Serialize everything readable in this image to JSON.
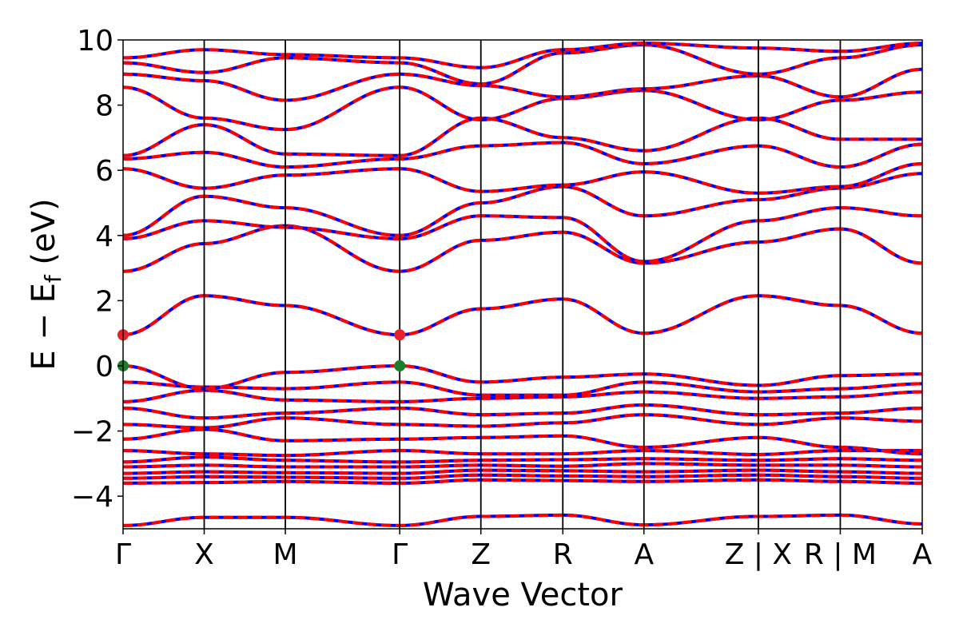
{
  "chart_data": {
    "type": "line",
    "ylabel": "E − E",
    "ylabel_sub": "f",
    "ylabel_unit": " (eV)",
    "xlabel": "Wave Vector",
    "ylim": [
      -5,
      10
    ],
    "yticks": [
      -4,
      -2,
      0,
      2,
      4,
      6,
      8,
      10
    ],
    "ytick_labels": [
      "−4",
      "−2",
      "0",
      "2",
      "4",
      "6",
      "8",
      "10"
    ],
    "kpath_ticks": [
      {
        "k": 0.0,
        "label": "Γ"
      },
      {
        "k": 1.0,
        "label": "X"
      },
      {
        "k": 2.0,
        "label": "M"
      },
      {
        "k": 3.41,
        "label": "Γ"
      },
      {
        "k": 4.41,
        "label": "Z"
      },
      {
        "k": 5.42,
        "label": "R"
      },
      {
        "k": 6.42,
        "label": "A"
      },
      {
        "k": 7.83,
        "label": "Z | X"
      },
      {
        "k": 8.84,
        "label": "R | M"
      },
      {
        "k": 9.85,
        "label": "A"
      }
    ],
    "xlim": [
      0,
      9.85
    ],
    "grid": false,
    "line_colors": {
      "primary": "#ff0000",
      "secondary": "#0000ff"
    },
    "line_style": "red dashed over blue",
    "series": [
      {
        "values": [
          -4.9,
          -4.65,
          -4.65,
          -4.9,
          -4.62,
          -4.58,
          -4.88,
          -4.62,
          -4.58,
          -4.85
        ]
      },
      {
        "values": [
          -3.6,
          -3.58,
          -3.55,
          -3.6,
          -3.5,
          -3.52,
          -3.55,
          -3.5,
          -3.55,
          -3.6
        ]
      },
      {
        "values": [
          -3.45,
          -3.4,
          -3.42,
          -3.45,
          -3.35,
          -3.38,
          -3.4,
          -3.35,
          -3.4,
          -3.45
        ]
      },
      {
        "values": [
          -3.3,
          -3.25,
          -3.28,
          -3.3,
          -3.2,
          -3.22,
          -3.25,
          -3.2,
          -3.25,
          -3.3
        ]
      },
      {
        "values": [
          -3.1,
          -3.05,
          -3.1,
          -3.1,
          -3.05,
          -3.08,
          -3.0,
          -3.05,
          -3.05,
          -3.1
        ]
      },
      {
        "values": [
          -2.95,
          -2.8,
          -2.9,
          -2.95,
          -2.9,
          -2.88,
          -2.85,
          -2.9,
          -2.85,
          -2.9
        ]
      },
      {
        "values": [
          -2.6,
          -2.7,
          -2.75,
          -2.6,
          -2.7,
          -2.7,
          -2.6,
          -2.72,
          -2.6,
          -2.6
        ]
      },
      {
        "values": [
          -2.25,
          -1.95,
          -2.3,
          -2.25,
          -2.2,
          -2.15,
          -2.5,
          -2.2,
          -2.5,
          -2.7
        ]
      },
      {
        "values": [
          -1.8,
          -1.9,
          -1.6,
          -1.8,
          -1.85,
          -1.75,
          -1.5,
          -1.8,
          -1.6,
          -1.7
        ]
      },
      {
        "values": [
          -1.3,
          -1.6,
          -1.45,
          -1.3,
          -1.5,
          -1.45,
          -1.2,
          -1.5,
          -1.45,
          -1.3
        ]
      },
      {
        "values": [
          -1.1,
          -0.75,
          -1.05,
          -1.1,
          -1.0,
          -0.95,
          -0.8,
          -1.0,
          -0.95,
          -0.8
        ]
      },
      {
        "values": [
          -0.5,
          -0.65,
          -0.7,
          -0.5,
          -0.9,
          -0.9,
          -0.5,
          -0.8,
          -0.7,
          -0.55
        ]
      },
      {
        "values": [
          0.0,
          -0.7,
          -0.2,
          0.0,
          -0.5,
          -0.35,
          -0.25,
          -0.6,
          -0.3,
          -0.25
        ]
      },
      {
        "values": [
          0.95,
          2.15,
          1.85,
          0.95,
          1.75,
          2.05,
          1.0,
          2.15,
          1.85,
          1.0
        ]
      },
      {
        "values": [
          2.9,
          3.75,
          4.3,
          2.9,
          3.85,
          4.1,
          3.15,
          3.8,
          4.2,
          3.15
        ]
      },
      {
        "values": [
          3.9,
          4.45,
          4.25,
          3.9,
          4.6,
          4.55,
          3.2,
          4.45,
          4.85,
          4.6
        ]
      },
      {
        "values": [
          4.0,
          5.2,
          4.85,
          4.0,
          5.0,
          5.5,
          4.6,
          5.1,
          5.45,
          5.9
        ]
      },
      {
        "values": [
          6.05,
          5.45,
          5.85,
          6.05,
          5.35,
          5.55,
          5.95,
          5.3,
          5.5,
          6.2
        ]
      },
      {
        "values": [
          6.35,
          6.55,
          6.1,
          6.35,
          6.75,
          6.85,
          6.2,
          6.75,
          6.1,
          6.8
        ]
      },
      {
        "values": [
          6.45,
          7.4,
          6.5,
          6.45,
          7.6,
          7.0,
          6.6,
          7.6,
          6.95,
          6.95
        ]
      },
      {
        "values": [
          8.55,
          7.6,
          7.25,
          8.55,
          7.55,
          8.2,
          8.45,
          7.55,
          8.15,
          8.4
        ]
      },
      {
        "values": [
          8.95,
          8.75,
          8.15,
          8.95,
          8.6,
          8.25,
          8.5,
          8.9,
          8.25,
          9.1
        ]
      },
      {
        "values": [
          9.3,
          9.0,
          9.45,
          9.3,
          8.65,
          9.6,
          9.85,
          8.95,
          9.45,
          9.85
        ]
      },
      {
        "values": [
          9.45,
          9.7,
          9.55,
          9.45,
          9.15,
          9.7,
          9.9,
          9.75,
          9.65,
          9.9
        ]
      }
    ],
    "markers": [
      {
        "k": 0.0,
        "y": 0.95,
        "color": "#e8202a",
        "label": "CBM"
      },
      {
        "k": 3.41,
        "y": 0.95,
        "color": "#e8202a",
        "label": "CBM"
      },
      {
        "k": 0.0,
        "y": 0.0,
        "color": "#1a7f2a",
        "label": "VBM"
      },
      {
        "k": 3.41,
        "y": 0.0,
        "color": "#1a7f2a",
        "label": "VBM"
      }
    ]
  }
}
